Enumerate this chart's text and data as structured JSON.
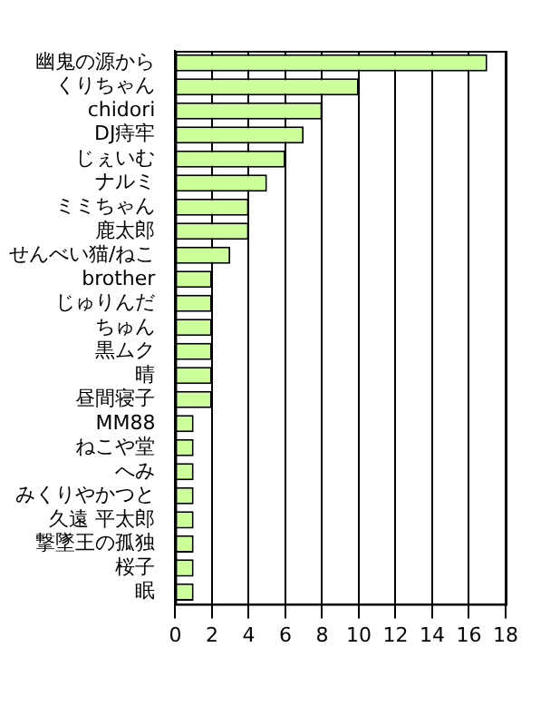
{
  "chart_data": {
    "type": "bar",
    "orientation": "horizontal",
    "categories": [
      "幽鬼の源から",
      "くりちゃん",
      "chidori",
      "DJ痔牢",
      "じぇいむ",
      "ナルミ",
      "ミミちゃん",
      "鹿太郎",
      "せんべい猫/ねこ",
      "brother",
      "じゅりんだ",
      "ちゅん",
      "黒ムク",
      "晴",
      "昼間寝子",
      "MM88",
      "ねこや堂",
      "へみ",
      "みくりやかつと",
      "久遠 平太郎",
      "撃墜王の孤独",
      "桜子",
      "眠"
    ],
    "values": [
      17,
      10,
      8,
      7,
      6,
      5,
      4,
      4,
      3,
      2,
      2,
      2,
      2,
      2,
      2,
      1,
      1,
      1,
      1,
      1,
      1,
      1,
      1
    ],
    "color": "#ccff99",
    "xlim": [
      0,
      18
    ],
    "xticks": [
      0,
      2,
      4,
      6,
      8,
      10,
      12,
      14,
      16,
      18
    ],
    "grid": "x",
    "legend": false
  }
}
